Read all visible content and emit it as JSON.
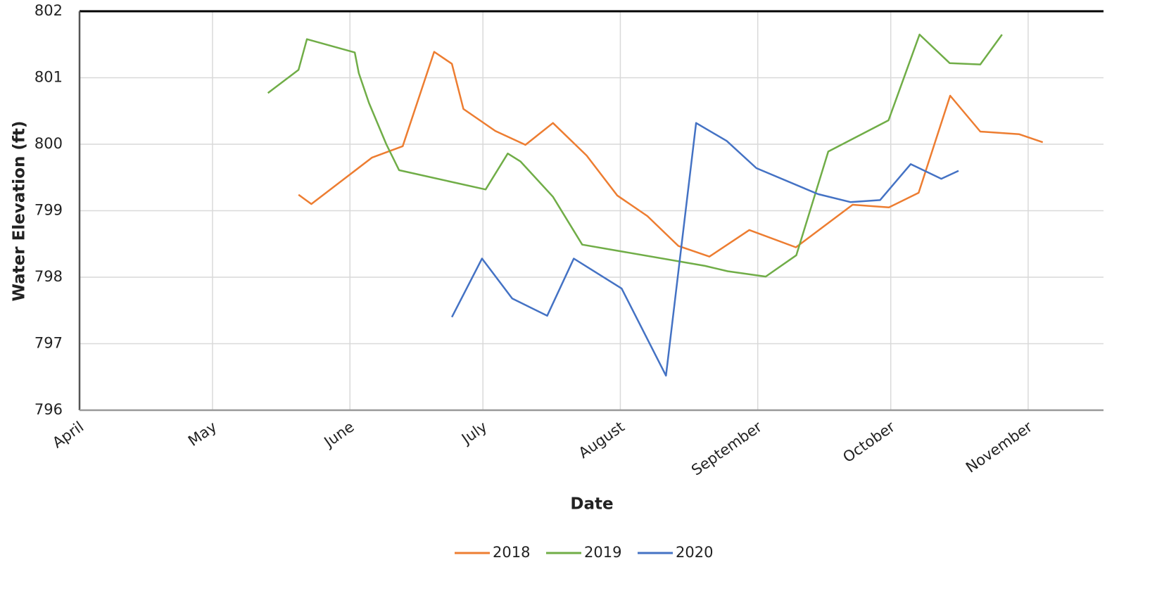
{
  "chart_data": {
    "type": "line",
    "x_label": "Date",
    "y_label": "Water Elevation (ft)",
    "xlim": [
      0,
      231
    ],
    "ylim": [
      796,
      802
    ],
    "xticks": [
      {
        "value": 0,
        "label": "April"
      },
      {
        "value": 30,
        "label": "May"
      },
      {
        "value": 61,
        "label": "June"
      },
      {
        "value": 91,
        "label": "July"
      },
      {
        "value": 122,
        "label": "August"
      },
      {
        "value": 153,
        "label": "September"
      },
      {
        "value": 183,
        "label": "October"
      },
      {
        "value": 214,
        "label": "November"
      }
    ],
    "yticks": [
      796,
      797,
      798,
      799,
      800,
      801,
      802
    ],
    "grid": true,
    "legend": "bottom",
    "series": [
      {
        "name": "2018",
        "color": "#ed7d31",
        "x": [
          49.4,
          52.3,
          66,
          72.9,
          80,
          84,
          86.6,
          93.8,
          100.6,
          106.8,
          114.4,
          121.3,
          128.1,
          135.1,
          142.1,
          151.1,
          161.6,
          174.4,
          182.6,
          189.3,
          196.4,
          203.2,
          212,
          217.3
        ],
        "values": [
          799.24,
          799.1,
          799.8,
          799.97,
          801.39,
          801.21,
          800.53,
          800.2,
          799.99,
          800.32,
          799.83,
          799.23,
          798.92,
          798.47,
          798.31,
          798.71,
          798.45,
          799.09,
          799.05,
          799.27,
          800.73,
          800.19,
          800.15,
          800.03
        ]
      },
      {
        "name": "2019",
        "color": "#70ad47",
        "x": [
          42.5,
          49.4,
          51.3,
          62.1,
          63,
          65.3,
          69.2,
          72.1,
          91.6,
          96.6,
          99.5,
          106.8,
          113.4,
          141.1,
          146.2,
          154.8,
          161.7,
          168.9,
          182.5,
          189.5,
          196.3,
          203.2,
          208.1
        ],
        "values": [
          800.77,
          801.12,
          801.58,
          801.38,
          801.07,
          800.62,
          800.0,
          799.61,
          799.32,
          799.86,
          799.74,
          799.21,
          798.49,
          798.17,
          798.09,
          798.01,
          798.33,
          799.89,
          800.36,
          801.65,
          801.22,
          801.2,
          801.65
        ]
      },
      {
        "name": "2020",
        "color": "#4472c4",
        "x": [
          84,
          90.8,
          97.6,
          105.5,
          111.5,
          122.3,
          132.3,
          139.1,
          146,
          152.7,
          166.6,
          173.9,
          180.6,
          187.5,
          194.4,
          198.3
        ],
        "values": [
          797.4,
          798.28,
          797.68,
          797.42,
          798.28,
          797.83,
          796.52,
          800.32,
          800.05,
          799.64,
          799.25,
          799.13,
          799.16,
          799.7,
          799.48,
          799.6
        ]
      }
    ]
  }
}
